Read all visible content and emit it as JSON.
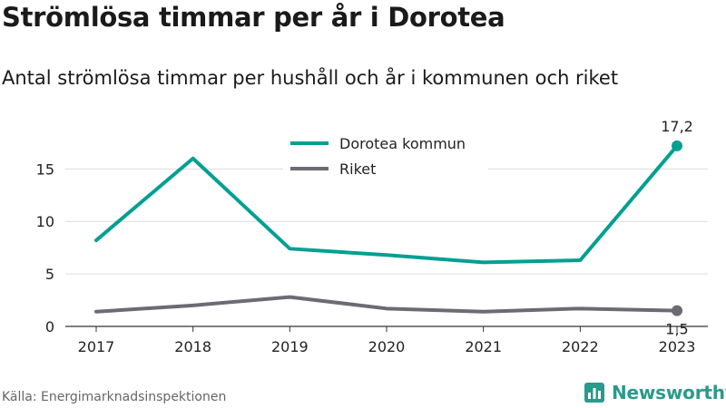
{
  "header": {
    "title": "Strömlösa timmar per år i Dorotea",
    "subtitle": "Antal strömlösa timmar per hushåll och år i kommunen och riket"
  },
  "footer": {
    "source": "Källa: Energimarknadsinspektionen",
    "brand": "Newsworthy",
    "brand_color": "#2a9a8a"
  },
  "chart_data": {
    "type": "line",
    "title": "Strömlösa timmar per år i Dorotea",
    "subtitle": "Antal strömlösa timmar per hushåll och år i kommunen och riket",
    "x": [
      "2017",
      "2018",
      "2019",
      "2020",
      "2021",
      "2022",
      "2023"
    ],
    "ylim": [
      0,
      19
    ],
    "yticks": [
      0,
      5,
      10,
      15
    ],
    "grid": true,
    "legend_position": "top-center",
    "series": [
      {
        "name": "Dorotea kommun",
        "color": "#00a092",
        "values": [
          8.2,
          16.0,
          7.4,
          6.8,
          6.1,
          6.3,
          17.2
        ],
        "end_label": "17,2",
        "end_label_position": "above"
      },
      {
        "name": "Riket",
        "color": "#6b6b73",
        "values": [
          1.4,
          2.0,
          2.8,
          1.7,
          1.4,
          1.7,
          1.5
        ],
        "end_label": "1,5",
        "end_label_position": "below"
      }
    ]
  }
}
